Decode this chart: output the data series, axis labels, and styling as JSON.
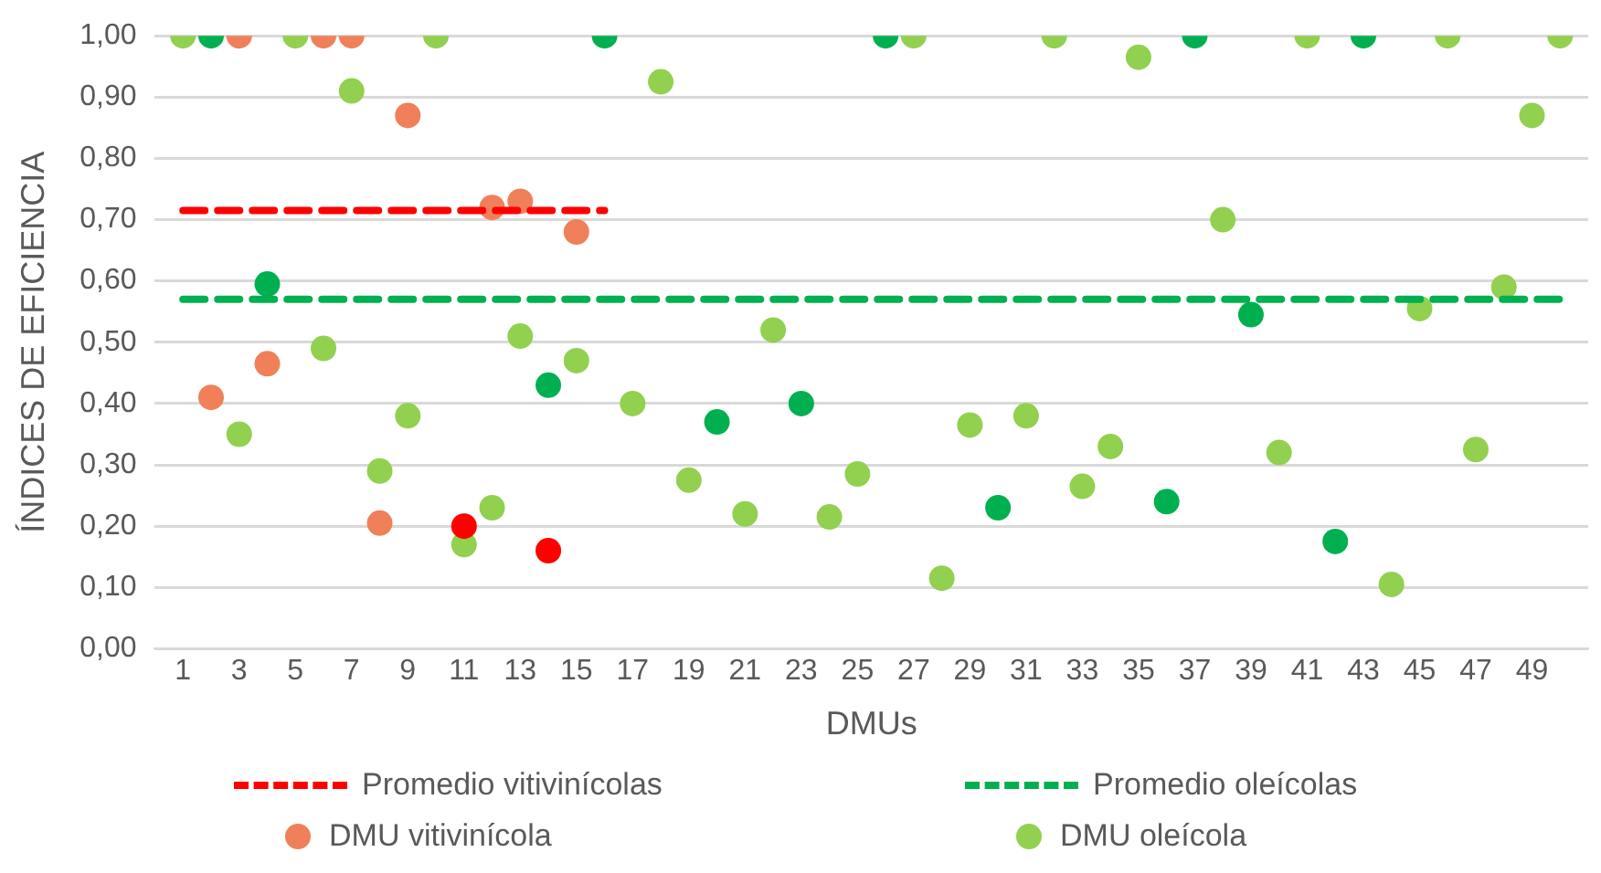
{
  "chart_data": {
    "type": "scatter",
    "ylabel": "ÍNDICES DE EFICIENCIA",
    "xlabel": "DMUs",
    "xlim": [
      0,
      51
    ],
    "xticks": [
      1,
      3,
      5,
      7,
      9,
      11,
      13,
      15,
      17,
      19,
      21,
      23,
      25,
      27,
      29,
      31,
      33,
      35,
      37,
      39,
      41,
      43,
      45,
      47,
      49
    ],
    "ylim": [
      0,
      1
    ],
    "yticks": [
      {
        "value": 0,
        "label": "0,00"
      },
      {
        "value": 0.1,
        "label": "0,10"
      },
      {
        "value": 0.2,
        "label": "0,20"
      },
      {
        "value": 0.3,
        "label": "0,30"
      },
      {
        "value": 0.4,
        "label": "0,40"
      },
      {
        "value": 0.5,
        "label": "0,50"
      },
      {
        "value": 0.6,
        "label": "0,60"
      },
      {
        "value": 0.7,
        "label": "0,70"
      },
      {
        "value": 0.8,
        "label": "0,80"
      },
      {
        "value": 0.9,
        "label": "0,90"
      },
      {
        "value": 1,
        "label": "1,00"
      }
    ],
    "grid": "y",
    "legend": "bottom",
    "marker": "circle",
    "series": [
      {
        "name": "Promedio vitivinícolas",
        "type": "line",
        "line_style": "dashed",
        "marker": "none",
        "color": "#ff0000",
        "x": [
          1,
          16
        ],
        "values": [
          0.715,
          0.715
        ]
      },
      {
        "name": "Promedio oleícolas",
        "type": "line",
        "line_style": "dashed",
        "marker": "none",
        "color": "#00b050",
        "x": [
          1,
          50
        ],
        "values": [
          0.57,
          0.57
        ]
      },
      {
        "name": "DMU vitivinícola",
        "color": "#f0805a",
        "x": [
          2,
          3,
          4,
          6,
          7,
          8,
          9,
          11,
          12,
          13,
          14,
          15
        ],
        "values": [
          0.41,
          1,
          0.465,
          1,
          1,
          0.205,
          0.87,
          0.2,
          0.72,
          0.73,
          0.16,
          0.68
        ],
        "colors": [
          "#f0805a",
          "#f0805a",
          "#f0805a",
          "#f0805a",
          "#f0805a",
          "#f0805a",
          "#f0805a",
          "#ff0000",
          "#f0805a",
          "#f0805a",
          "#ff0000",
          "#f0805a"
        ]
      },
      {
        "name": "DMU oleícola",
        "color": "#92d050",
        "x": [
          1,
          2,
          3,
          4,
          5,
          6,
          7,
          8,
          9,
          10,
          11,
          12,
          13,
          14,
          15,
          16,
          17,
          18,
          19,
          20,
          21,
          22,
          23,
          24,
          25,
          26,
          27,
          28,
          29,
          30,
          31,
          32,
          33,
          34,
          35,
          36,
          37,
          38,
          39,
          40,
          41,
          42,
          43,
          44,
          45,
          46,
          47,
          48,
          49,
          50
        ],
        "values": [
          1,
          1,
          0.35,
          0.595,
          1,
          0.49,
          0.91,
          0.29,
          0.38,
          1,
          0.17,
          0.23,
          0.51,
          0.43,
          0.47,
          1,
          0.4,
          0.925,
          0.275,
          0.37,
          0.22,
          0.52,
          0.4,
          0.215,
          0.285,
          1,
          1,
          0.115,
          0.365,
          0.23,
          0.38,
          1,
          0.265,
          0.33,
          0.965,
          0.24,
          1,
          0.7,
          0.545,
          0.32,
          1,
          0.175,
          1,
          0.105,
          0.555,
          1,
          0.325,
          0.59,
          0.87,
          1
        ],
        "colors": [
          "#92d050",
          "#00b050",
          "#92d050",
          "#00b050",
          "#92d050",
          "#92d050",
          "#92d050",
          "#92d050",
          "#92d050",
          "#92d050",
          "#92d050",
          "#92d050",
          "#92d050",
          "#00b050",
          "#92d050",
          "#00b050",
          "#92d050",
          "#92d050",
          "#92d050",
          "#00b050",
          "#92d050",
          "#92d050",
          "#00b050",
          "#92d050",
          "#92d050",
          "#00b050",
          "#92d050",
          "#92d050",
          "#92d050",
          "#00b050",
          "#92d050",
          "#92d050",
          "#92d050",
          "#92d050",
          "#92d050",
          "#00b050",
          "#00b050",
          "#92d050",
          "#00b050",
          "#92d050",
          "#92d050",
          "#00b050",
          "#00b050",
          "#92d050",
          "#92d050",
          "#92d050",
          "#92d050",
          "#92d050",
          "#92d050",
          "#92d050"
        ]
      }
    ]
  }
}
